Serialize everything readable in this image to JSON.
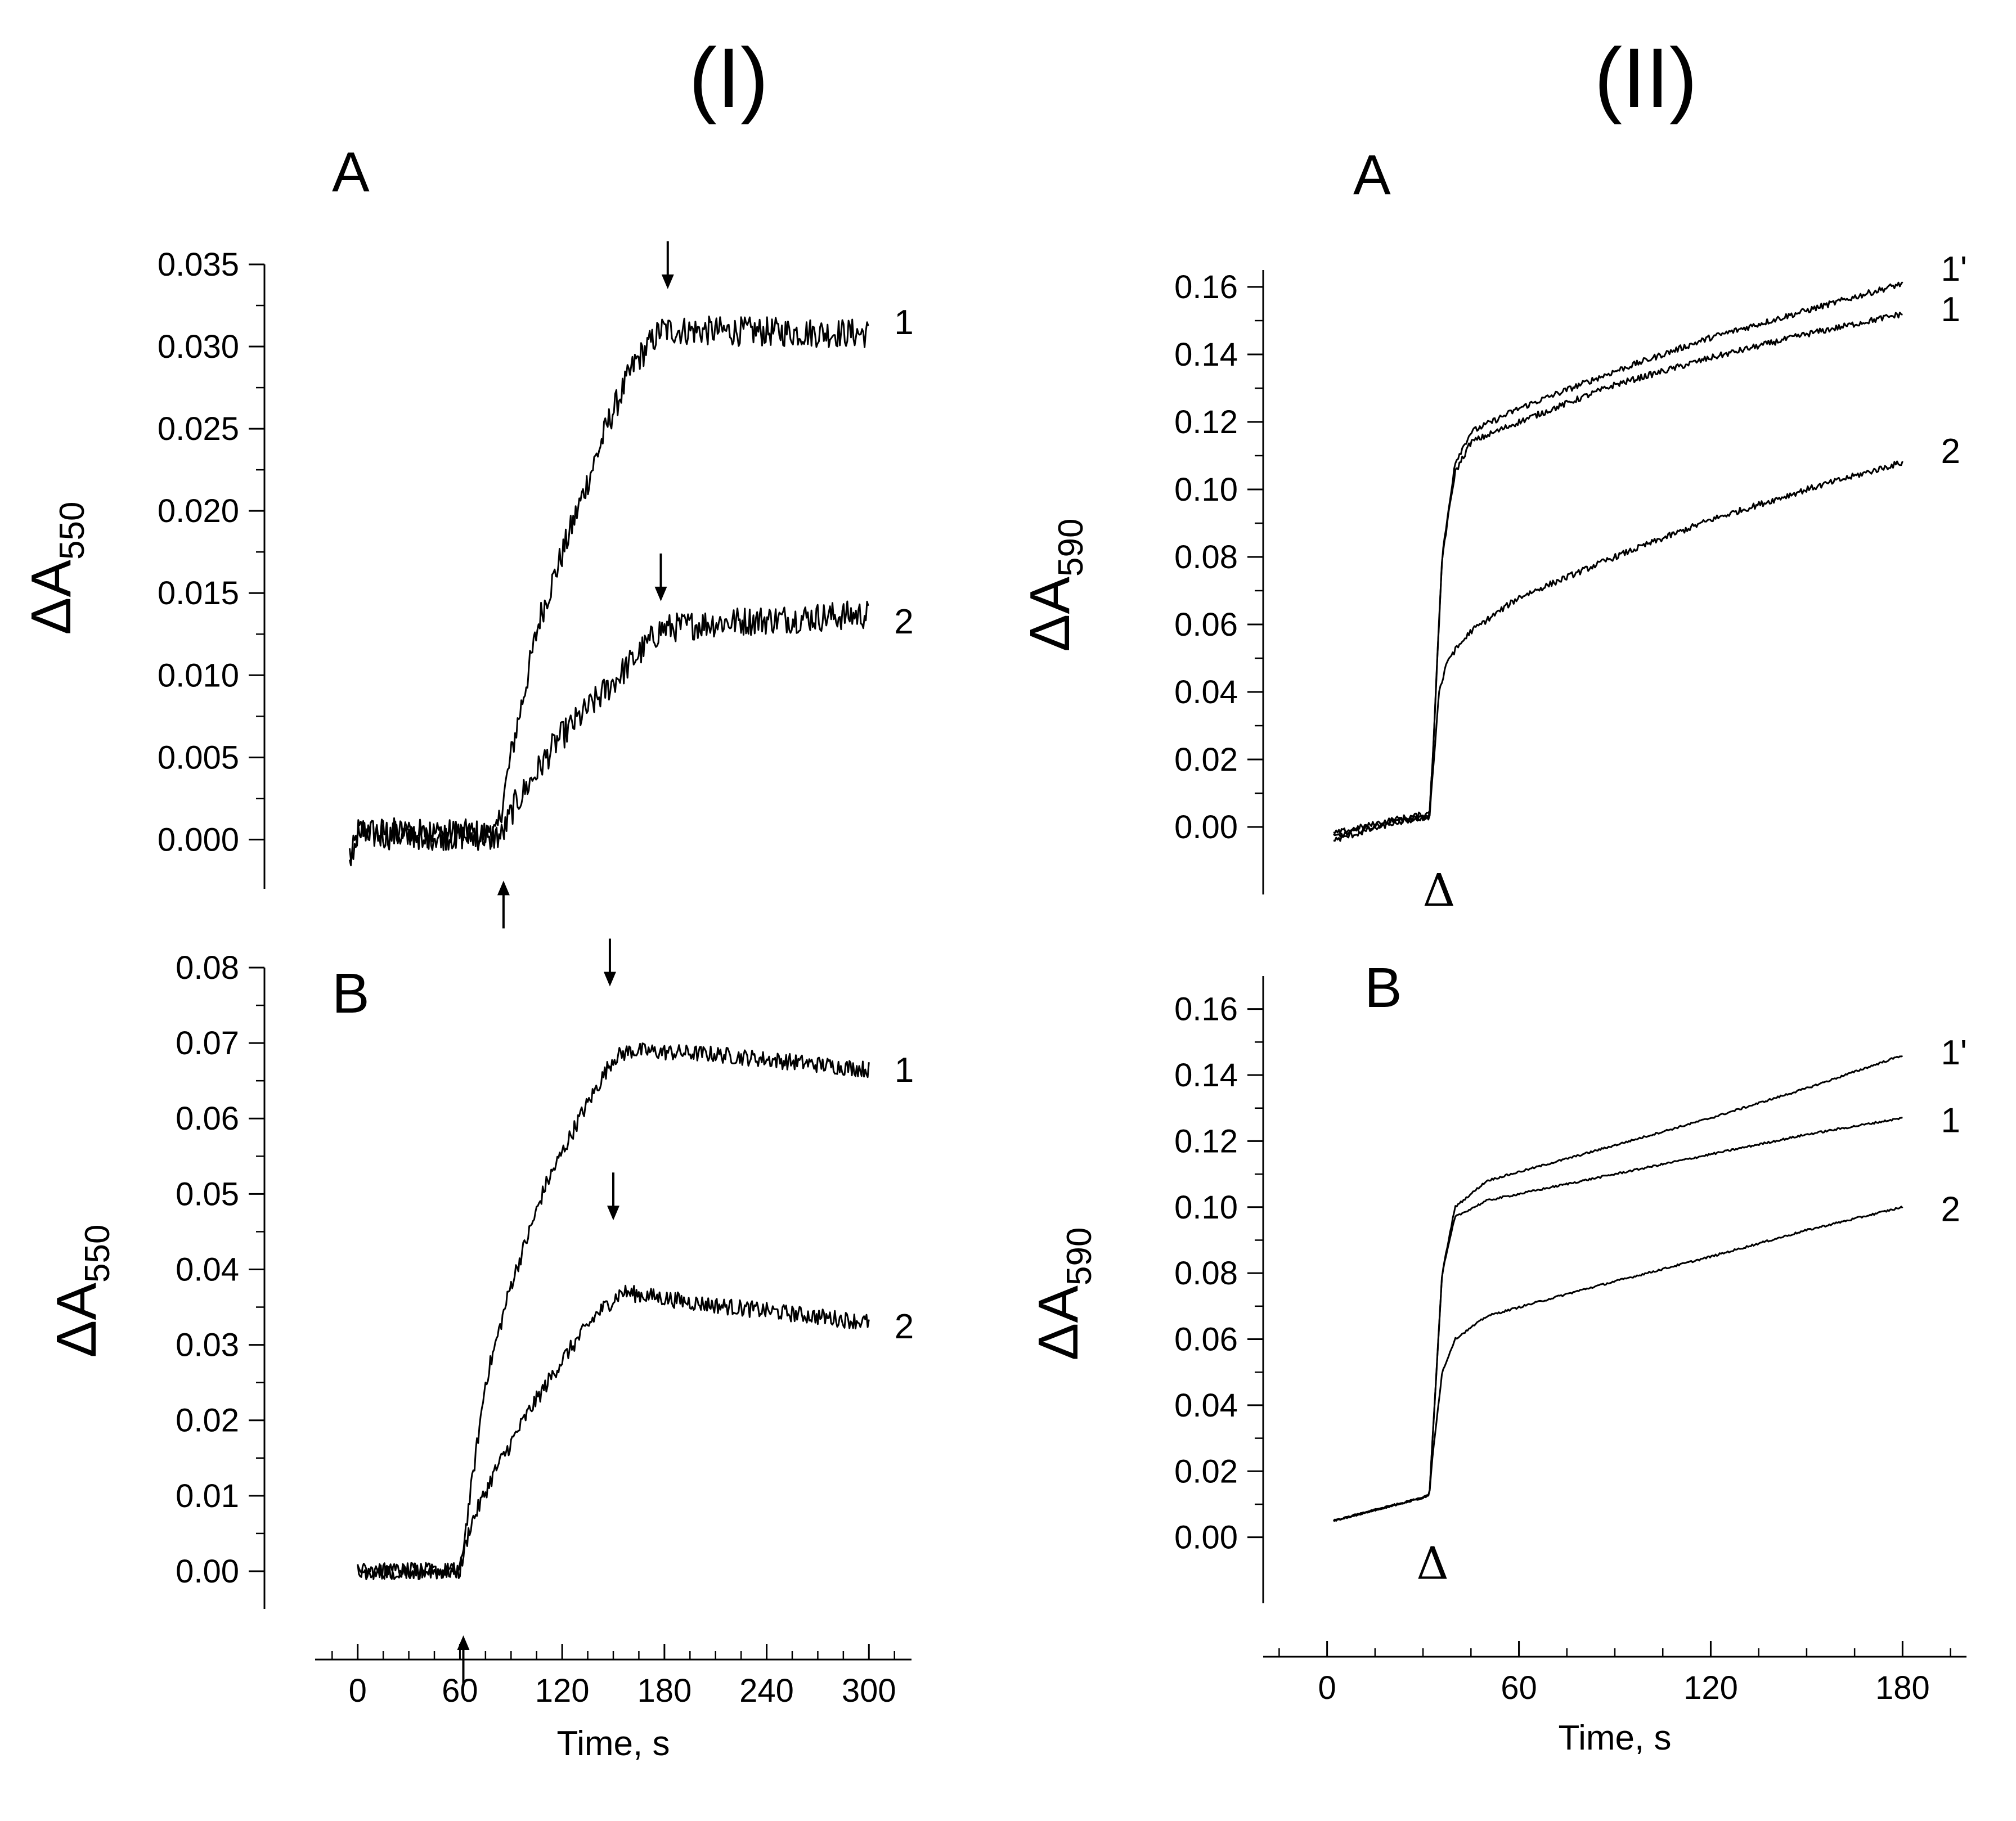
{
  "figure": {
    "col_headers": [
      "(I)",
      "(II)"
    ],
    "time_axis_label": "Time, s",
    "ylabel_left": {
      "main": "ΔA",
      "sub": "550"
    },
    "ylabel_right": {
      "main": "ΔA",
      "sub": "590"
    },
    "arrow_glyph": "↓",
    "delta_glyph": "Δ"
  },
  "chart_data": [
    {
      "id": "I-A",
      "type": "line",
      "panel_label": "A",
      "xlabel": "",
      "ylabel": "ΔA550",
      "xlim": [
        -20,
        325
      ],
      "ylim": [
        -0.003,
        0.035
      ],
      "xticks": [
        0,
        60,
        120,
        180,
        240,
        300
      ],
      "xtick_labels": [],
      "yticks": [
        0.0,
        0.005,
        0.01,
        0.015,
        0.02,
        0.025,
        0.03,
        0.035
      ],
      "ytick_labels": [
        "0.000",
        "0.005",
        "0.010",
        "0.015",
        "0.020",
        "0.025",
        "0.030",
        "0.035"
      ],
      "noise": 0.0009,
      "series": [
        {
          "name": "1",
          "label_at": [
            315,
            0.0315
          ],
          "points": [
            [
              0,
              -0.0015
            ],
            [
              5,
              0.0005
            ],
            [
              85,
              0.0003
            ],
            [
              95,
              0.006
            ],
            [
              110,
              0.0135
            ],
            [
              130,
              0.0195
            ],
            [
              150,
              0.0255
            ],
            [
              165,
              0.029
            ],
            [
              180,
              0.031
            ],
            [
              300,
              0.0308
            ]
          ]
        },
        {
          "name": "2",
          "label_at": [
            315,
            0.0133
          ],
          "points": [
            [
              0,
              -0.0012
            ],
            [
              5,
              0.0003
            ],
            [
              88,
              0.0002
            ],
            [
              95,
              0.002
            ],
            [
              120,
              0.006
            ],
            [
              150,
              0.0093
            ],
            [
              180,
              0.0128
            ],
            [
              210,
              0.0132
            ],
            [
              300,
              0.0137
            ]
          ]
        }
      ],
      "markers": [
        {
          "kind": "down-arrow",
          "x": 184,
          "y": 0.0335
        },
        {
          "kind": "down-arrow",
          "x": 180,
          "y": 0.0145
        },
        {
          "kind": "up-arrow",
          "x": 89,
          "y": -0.0025
        }
      ]
    },
    {
      "id": "I-B",
      "type": "line",
      "panel_label": "B",
      "xlabel": "Time, s",
      "ylabel": "ΔA550",
      "xlim": [
        -25,
        325
      ],
      "ylim": [
        -0.005,
        0.08
      ],
      "xticks": [
        0,
        60,
        120,
        180,
        240,
        300
      ],
      "xtick_labels": [
        "0",
        "60",
        "120",
        "180",
        "240",
        "300"
      ],
      "yticks": [
        0.0,
        0.01,
        0.02,
        0.03,
        0.04,
        0.05,
        0.06,
        0.07,
        0.08
      ],
      "ytick_labels": [
        "0.00",
        "0.01",
        "0.02",
        "0.03",
        "0.04",
        "0.05",
        "0.06",
        "0.07",
        "0.08"
      ],
      "noise": 0.0011,
      "series": [
        {
          "name": "1",
          "label_at": [
            315,
            0.0665
          ],
          "points": [
            [
              0,
              0.0
            ],
            [
              60,
              0.0
            ],
            [
              66,
              0.01
            ],
            [
              75,
              0.025
            ],
            [
              90,
              0.038
            ],
            [
              110,
              0.051
            ],
            [
              130,
              0.06
            ],
            [
              150,
              0.068
            ],
            [
              160,
              0.069
            ],
            [
              210,
              0.0685
            ],
            [
              300,
              0.0665
            ]
          ]
        },
        {
          "name": "2",
          "label_at": [
            315,
            0.0325
          ],
          "points": [
            [
              0,
              0.0
            ],
            [
              60,
              0.0
            ],
            [
              66,
              0.006
            ],
            [
              80,
              0.013
            ],
            [
              100,
              0.021
            ],
            [
              120,
              0.028
            ],
            [
              140,
              0.034
            ],
            [
              155,
              0.037
            ],
            [
              200,
              0.0355
            ],
            [
              300,
              0.033
            ]
          ]
        }
      ],
      "markers": [
        {
          "kind": "down-arrow",
          "x": 148,
          "y": 0.0775
        },
        {
          "kind": "down-arrow",
          "x": 150,
          "y": 0.0465
        },
        {
          "kind": "up-arrow",
          "x": 62,
          "y": -0.0085
        }
      ]
    },
    {
      "id": "II-A",
      "type": "line",
      "panel_label": "A",
      "xlabel": "",
      "ylabel": "ΔA590",
      "xlim": [
        -20,
        200
      ],
      "ylim": [
        -0.02,
        0.165
      ],
      "xticks": [
        0,
        60,
        120,
        180
      ],
      "xtick_labels": [],
      "yticks": [
        0.0,
        0.02,
        0.04,
        0.06,
        0.08,
        0.1,
        0.12,
        0.14,
        0.16
      ],
      "ytick_labels": [
        "0.00",
        "0.02",
        "0.04",
        "0.06",
        "0.08",
        "0.10",
        "0.12",
        "0.14",
        "0.16"
      ],
      "noise": 0.0009,
      "series": [
        {
          "name": "1'",
          "label_at": [
            192,
            0.1655
          ],
          "points": [
            [
              2,
              -0.002
            ],
            [
              20,
              0.002
            ],
            [
              32,
              0.004
            ],
            [
              33,
              0.02
            ],
            [
              36,
              0.08
            ],
            [
              40,
              0.108
            ],
            [
              45,
              0.117
            ],
            [
              60,
              0.124
            ],
            [
              90,
              0.135
            ],
            [
              120,
              0.145
            ],
            [
              150,
              0.153
            ],
            [
              180,
              0.161
            ]
          ]
        },
        {
          "name": "1",
          "label_at": [
            192,
            0.1535
          ],
          "points": [
            [
              2,
              -0.003
            ],
            [
              20,
              0.0015
            ],
            [
              32,
              0.003
            ],
            [
              33,
              0.02
            ],
            [
              36,
              0.08
            ],
            [
              40,
              0.105
            ],
            [
              45,
              0.114
            ],
            [
              60,
              0.12
            ],
            [
              90,
              0.131
            ],
            [
              120,
              0.139
            ],
            [
              150,
              0.146
            ],
            [
              180,
              0.152
            ]
          ]
        },
        {
          "name": "2",
          "label_at": [
            192,
            0.1115
          ],
          "points": [
            [
              2,
              -0.004
            ],
            [
              20,
              0.001
            ],
            [
              32,
              0.003
            ],
            [
              33,
              0.015
            ],
            [
              35,
              0.04
            ],
            [
              38,
              0.05
            ],
            [
              45,
              0.058
            ],
            [
              60,
              0.068
            ],
            [
              90,
              0.08
            ],
            [
              120,
              0.091
            ],
            [
              150,
              0.1
            ],
            [
              180,
              0.108
            ]
          ]
        }
      ],
      "markers": [
        {
          "kind": "delta",
          "x": 35,
          "y": -0.013
        }
      ]
    },
    {
      "id": "II-B",
      "type": "line",
      "panel_label": "B",
      "xlabel": "Time, s",
      "ylabel": "ΔA590",
      "xlim": [
        -20,
        200
      ],
      "ylim": [
        -0.02,
        0.17
      ],
      "xticks": [
        0,
        60,
        120,
        180
      ],
      "xtick_labels": [
        "0",
        "60",
        "120",
        "180"
      ],
      "yticks": [
        0.0,
        0.02,
        0.04,
        0.06,
        0.08,
        0.1,
        0.12,
        0.14,
        0.16
      ],
      "ytick_labels": [
        "0.00",
        "0.02",
        "0.04",
        "0.06",
        "0.08",
        "0.10",
        "0.12",
        "0.14",
        "0.16"
      ],
      "noise": 0.0003,
      "series": [
        {
          "name": "1'",
          "label_at": [
            192,
            0.147
          ],
          "points": [
            [
              2,
              0.005
            ],
            [
              30,
              0.012
            ],
            [
              32,
              0.013
            ],
            [
              33,
              0.03
            ],
            [
              36,
              0.08
            ],
            [
              40,
              0.1
            ],
            [
              50,
              0.108
            ],
            [
              80,
              0.116
            ],
            [
              120,
              0.127
            ],
            [
              150,
              0.136
            ],
            [
              180,
              0.146
            ]
          ]
        },
        {
          "name": "1",
          "label_at": [
            192,
            0.1265
          ],
          "points": [
            [
              2,
              0.005
            ],
            [
              30,
              0.012
            ],
            [
              32,
              0.013
            ],
            [
              33,
              0.03
            ],
            [
              36,
              0.08
            ],
            [
              40,
              0.097
            ],
            [
              50,
              0.102
            ],
            [
              80,
              0.108
            ],
            [
              120,
              0.116
            ],
            [
              150,
              0.122
            ],
            [
              180,
              0.127
            ]
          ]
        },
        {
          "name": "2",
          "label_at": [
            192,
            0.0995
          ],
          "points": [
            [
              2,
              0.005
            ],
            [
              30,
              0.012
            ],
            [
              32,
              0.013
            ],
            [
              33,
              0.025
            ],
            [
              36,
              0.05
            ],
            [
              40,
              0.06
            ],
            [
              50,
              0.067
            ],
            [
              80,
              0.075
            ],
            [
              120,
              0.085
            ],
            [
              150,
              0.093
            ],
            [
              180,
              0.1
            ]
          ]
        }
      ],
      "markers": [
        {
          "kind": "delta",
          "x": 33,
          "y": -0.002
        }
      ]
    }
  ]
}
